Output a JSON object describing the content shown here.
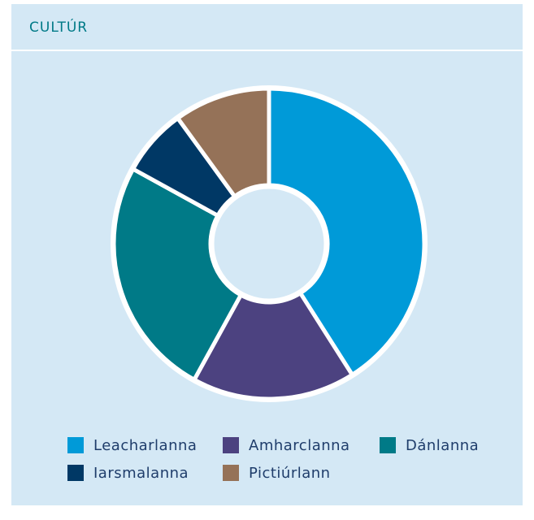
{
  "chart_data": {
    "type": "donut",
    "title": "CULTÚR",
    "categories": [
      "Leacharlanna",
      "Amharclanna",
      "Dánlanna",
      "Iarsmalanna",
      "Pictiúrlann"
    ],
    "values": [
      41,
      17,
      25,
      7,
      10
    ],
    "colors": [
      "#009ad8",
      "#4c4280",
      "#007a87",
      "#003865",
      "#957258"
    ],
    "legend": "bottom"
  }
}
